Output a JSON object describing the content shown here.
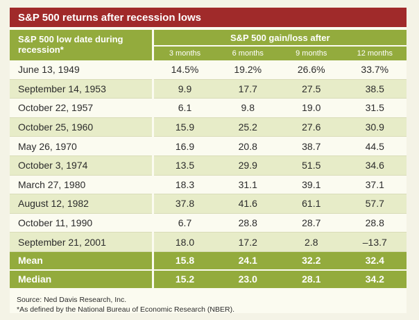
{
  "title": "S&P 500 returns after recession lows",
  "header": {
    "date_col": "S&P 500 low date during recession*",
    "group": "S&P 500 gain/loss after",
    "periods": [
      "3 months",
      "6 months",
      "9 months",
      "12 months"
    ]
  },
  "rows": [
    {
      "date": "June 13, 1949",
      "values": [
        "14.5%",
        "19.2%",
        "26.6%",
        "33.7%"
      ]
    },
    {
      "date": "September 14, 1953",
      "values": [
        "9.9",
        "17.7",
        "27.5",
        "38.5"
      ]
    },
    {
      "date": "October 22, 1957",
      "values": [
        "6.1",
        "9.8",
        "19.0",
        "31.5"
      ]
    },
    {
      "date": "October 25, 1960",
      "values": [
        "15.9",
        "25.2",
        "27.6",
        "30.9"
      ]
    },
    {
      "date": "May 26, 1970",
      "values": [
        "16.9",
        "20.8",
        "38.7",
        "44.5"
      ]
    },
    {
      "date": "October 3, 1974",
      "values": [
        "13.5",
        "29.9",
        "51.5",
        "34.6"
      ]
    },
    {
      "date": "March 27, 1980",
      "values": [
        "18.3",
        "31.1",
        "39.1",
        "37.1"
      ]
    },
    {
      "date": "August 12, 1982",
      "values": [
        "37.8",
        "41.6",
        "61.1",
        "57.7"
      ]
    },
    {
      "date": "October 11, 1990",
      "values": [
        "6.7",
        "28.8",
        "28.7",
        "28.8"
      ]
    },
    {
      "date": "September 21, 2001",
      "values": [
        "18.0",
        "17.2",
        "2.8",
        "–13.7"
      ]
    }
  ],
  "summary": [
    {
      "label": "Mean",
      "values": [
        "15.8",
        "24.1",
        "32.2",
        "32.4"
      ]
    },
    {
      "label": "Median",
      "values": [
        "15.2",
        "23.0",
        "28.1",
        "34.2"
      ]
    }
  ],
  "source": "Source: Ned Davis Research, Inc.",
  "footnote": "*As defined by the National Bureau of Economic Research (NBER).",
  "colors": {
    "title_bar": "#a02a2a",
    "header_green": "#93ab3d",
    "row_stripe": "#e7ecc8"
  }
}
